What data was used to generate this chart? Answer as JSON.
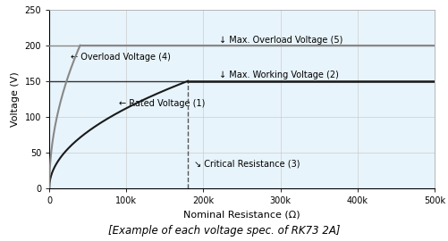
{
  "title": "[Example of each voltage spec. of RK73 2A]",
  "xlabel": "Nominal Resistance (Ω)",
  "ylabel": "Voltage (V)",
  "xlim": [
    0,
    500000
  ],
  "ylim": [
    0,
    250
  ],
  "yticks": [
    0,
    50,
    100,
    150,
    200,
    250
  ],
  "xtick_labels": [
    "0",
    "100k",
    "200k",
    "300k",
    "400k",
    "500k"
  ],
  "xtick_vals": [
    0,
    100000,
    200000,
    300000,
    400000,
    500000
  ],
  "max_overload_voltage": 200,
  "max_working_voltage": 150,
  "critical_resistance": 180000,
  "bg_color": "#e8f4fb",
  "curve_color_rated": "#1a1a1a",
  "curve_color_overload": "#888888",
  "dashed_line_color": "#555555",
  "P_rated": 0.125,
  "P_over": 1.0,
  "overload_cap_R": 40000,
  "ann_overload_voltage_x": 220000,
  "ann_overload_voltage_y": 207,
  "ann_working_voltage_x": 220000,
  "ann_working_voltage_y": 158,
  "ann_overload_curve_x": 28000,
  "ann_overload_curve_y": 183,
  "ann_rated_curve_x": 90000,
  "ann_rated_curve_y": 118,
  "ann_critical_res_x": 188000,
  "ann_critical_res_y": 34,
  "fontsize_ann": 7,
  "fontsize_axis_label": 8,
  "fontsize_tick": 7,
  "fontsize_title": 8.5
}
